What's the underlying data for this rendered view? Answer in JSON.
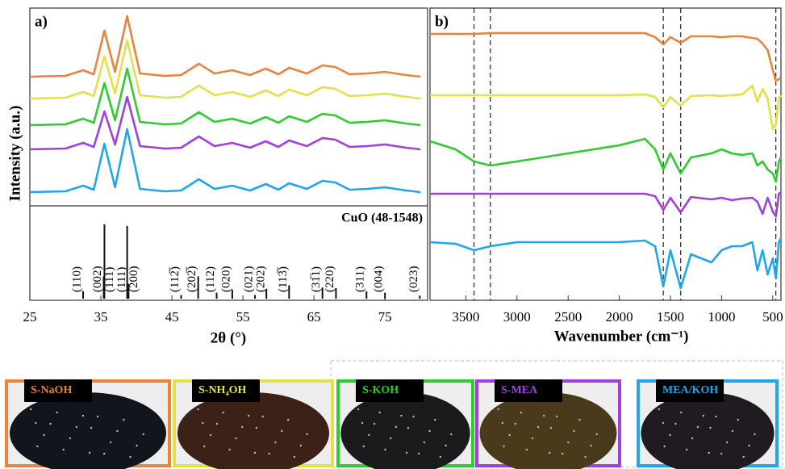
{
  "chart_data": [
    {
      "type": "line",
      "label": "a)",
      "xlabel": "2θ (°)",
      "ylabel": "Intensity (a.u.)",
      "x": [
        25,
        30,
        32.5,
        34,
        35.5,
        37,
        38.7,
        40.5,
        44,
        46.3,
        48.8,
        51,
        53.5,
        56,
        58.2,
        60,
        61.5,
        64,
        66.2,
        68,
        70,
        72.5,
        75,
        78,
        80
      ],
      "series": [
        {
          "color": "#e8843c",
          "values": [
            160,
            161,
            168,
            163,
            217,
            166,
            235,
            164,
            161,
            162,
            176,
            164,
            168,
            162,
            170,
            163,
            171,
            164,
            174,
            172,
            163,
            164,
            166,
            162,
            160
          ]
        },
        {
          "color": "#e3e04a",
          "values": [
            133,
            134,
            141,
            136,
            185,
            139,
            205,
            137,
            134,
            135,
            149,
            137,
            141,
            135,
            143,
            136,
            144,
            137,
            147,
            145,
            136,
            137,
            139,
            135,
            133
          ]
        },
        {
          "color": "#2ecc2e",
          "values": [
            100,
            101,
            108,
            103,
            152,
            106,
            170,
            104,
            101,
            102,
            116,
            104,
            108,
            102,
            110,
            103,
            111,
            104,
            114,
            112,
            103,
            104,
            106,
            102,
            100
          ]
        },
        {
          "color": "#a040e0",
          "values": [
            70,
            71,
            78,
            73,
            117,
            76,
            135,
            74,
            71,
            72,
            86,
            74,
            78,
            72,
            80,
            73,
            81,
            74,
            84,
            82,
            73,
            74,
            76,
            72,
            70
          ]
        },
        {
          "color": "#1ea6ee",
          "values": [
            17,
            18,
            25,
            20,
            77,
            23,
            95,
            21,
            18,
            19,
            33,
            21,
            25,
            19,
            27,
            20,
            28,
            21,
            31,
            29,
            20,
            21,
            23,
            19,
            17
          ]
        }
      ],
      "xlim": [
        25,
        81
      ],
      "xticks": [
        25,
        35,
        45,
        55,
        65,
        75
      ],
      "ylim": [
        0,
        245
      ],
      "reference": {
        "name": "CuO (48-1548)",
        "positions": [
          32.5,
          35.4,
          35.5,
          38.7,
          38.9,
          46.3,
          48.7,
          51.3,
          53.5,
          56.7,
          58.3,
          61.5,
          66.2,
          68.1,
          72.4,
          75.0,
          79.9
        ],
        "heights": [
          10,
          30,
          100,
          98,
          20,
          5,
          30,
          8,
          12,
          5,
          13,
          18,
          15,
          14,
          10,
          8,
          4
        ],
        "labels": [
          "(110)",
          "(002)",
          "(11̅1)",
          "(111)",
          "(200)",
          "(112̅)",
          "(202̅)",
          "(112)",
          "(020)",
          "(021)",
          "(202)",
          "(113̅)",
          "(31̅1)",
          "(220)",
          "(311)",
          "(004)",
          "(023)"
        ],
        "ylim": [
          0,
          100
        ]
      }
    },
    {
      "type": "line",
      "label": "b)",
      "xlabel": "Wavenumber (cm⁻¹)",
      "x": [
        3850,
        3600,
        3420,
        3260,
        3000,
        2500,
        2000,
        1750,
        1650,
        1570,
        1500,
        1400,
        1300,
        1100,
        1000,
        900,
        800,
        700,
        650,
        600,
        550,
        500,
        470,
        440,
        420
      ],
      "series": [
        {
          "color": "#e8843c",
          "values": [
            330,
            330,
            330,
            331,
            331,
            331,
            331,
            331,
            326,
            317,
            326,
            319,
            327,
            327,
            326,
            327,
            327,
            325,
            324,
            318,
            310,
            285,
            272,
            274,
            276
          ]
        },
        {
          "color": "#e3e04a",
          "values": [
            254,
            254,
            254,
            254,
            254,
            254,
            254,
            255,
            252,
            239,
            252,
            241,
            253,
            254,
            253,
            254,
            255,
            266,
            246,
            262,
            250,
            212,
            218,
            250,
            254
          ]
        },
        {
          "color": "#2ecc2e",
          "values": [
            197,
            187,
            172,
            167,
            172,
            182,
            192,
            200,
            187,
            162,
            182,
            157,
            177,
            182,
            187,
            182,
            180,
            182,
            167,
            172,
            162,
            157,
            147,
            172,
            177
          ]
        },
        {
          "color": "#a040e0",
          "values": [
            132,
            132,
            132,
            132,
            132,
            132,
            132,
            132,
            129,
            112,
            127,
            109,
            128,
            125,
            127,
            124,
            126,
            127,
            122,
            107,
            127,
            110,
            104,
            132,
            134
          ]
        },
        {
          "color": "#1ea6ee",
          "values": [
            72,
            70,
            62,
            67,
            72,
            72,
            72,
            74,
            67,
            17,
            62,
            15,
            57,
            47,
            62,
            67,
            67,
            72,
            37,
            62,
            32,
            52,
            27,
            72,
            77
          ]
        }
      ],
      "xlim": [
        3850,
        420
      ],
      "xticks": [
        3500,
        3000,
        2500,
        2000,
        1500,
        1000,
        500
      ],
      "ylim": [
        0,
        362
      ],
      "reference_lines": [
        3420,
        3260,
        1570,
        1400,
        470
      ]
    }
  ],
  "samples": [
    {
      "label": "S-NaOH",
      "color": "#e8843c"
    },
    {
      "label": "S-NH₄OH",
      "color": "#e3e04a"
    },
    {
      "label": "S-KOH",
      "color": "#2ecc2e"
    },
    {
      "label": "S-MEA",
      "color": "#a040e0"
    },
    {
      "label": "MEA/KOH",
      "color": "#1ea6ee"
    }
  ]
}
